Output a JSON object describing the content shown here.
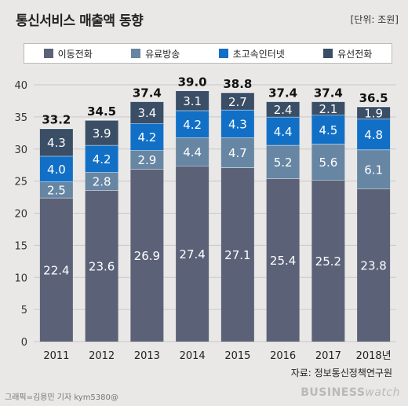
{
  "title": "통신서비스 매출액 동향",
  "unit_label": "[단위: 조원]",
  "source": "자료: 정보통신정책연구원",
  "credit": "그래픽=김용민 기자 kym5380@",
  "brand": {
    "bold": "BUSINESS",
    "light": "watch"
  },
  "colors": {
    "mobile": "#5b6278",
    "paytv": "#6686a3",
    "broadband": "#1170c6",
    "wired": "#3a4e66"
  },
  "chart_data": {
    "type": "bar",
    "stacked": true,
    "categories": [
      "2011",
      "2012",
      "2013",
      "2014",
      "2015",
      "2016",
      "2017",
      "2018년"
    ],
    "series": [
      {
        "name": "이동전화",
        "key": "mobile",
        "values": [
          22.4,
          23.6,
          26.9,
          27.4,
          27.1,
          25.4,
          25.2,
          23.8
        ]
      },
      {
        "name": "유료방송",
        "key": "paytv",
        "values": [
          2.5,
          2.8,
          2.9,
          4.4,
          4.7,
          5.2,
          5.6,
          6.1
        ]
      },
      {
        "name": "초고속인터넷",
        "key": "broadband",
        "values": [
          4.0,
          4.2,
          4.2,
          4.2,
          4.3,
          4.4,
          4.5,
          4.8
        ]
      },
      {
        "name": "유선전화",
        "key": "wired",
        "values": [
          4.3,
          3.9,
          3.4,
          3.1,
          2.7,
          2.4,
          2.1,
          1.9
        ]
      }
    ],
    "totals": [
      "33.2",
      "34.5",
      "37.4",
      "39.0",
      "38.8",
      "37.4",
      "37.4",
      "36.5"
    ],
    "ylim": [
      0,
      40
    ],
    "yticks": [
      0,
      5,
      10,
      15,
      20,
      25,
      30,
      35,
      40
    ],
    "grid": true,
    "legend": "top"
  }
}
